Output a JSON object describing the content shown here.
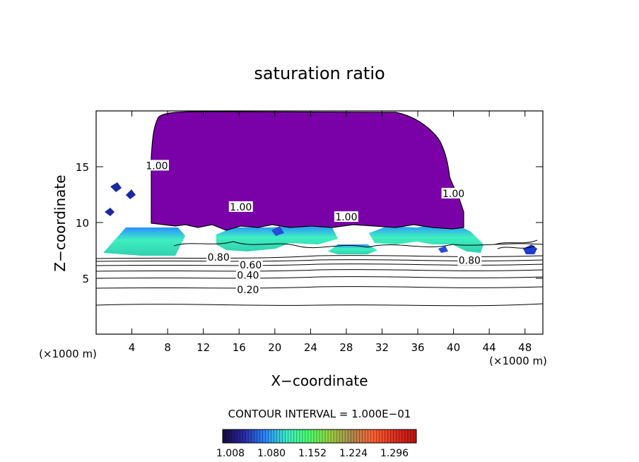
{
  "chart_data": {
    "type": "heatmap",
    "title": "saturation ratio",
    "xlabel": "X−coordinate",
    "ylabel": "Z−coordinate",
    "x_units_left": "(×1000 m)",
    "x_units_right": "(×1000 m)",
    "xlim": [
      0,
      50
    ],
    "ylim": [
      0,
      20
    ],
    "x_ticks": [
      4,
      8,
      12,
      16,
      20,
      24,
      28,
      32,
      36,
      40,
      44,
      48
    ],
    "y_ticks": [
      5,
      10,
      15
    ],
    "contour_interval_text": "CONTOUR INTERVAL = 1.000E−01",
    "colorbar_ticks": [
      "1.008",
      "1.080",
      "1.152",
      "1.224",
      "1.296"
    ],
    "colorbar_stops": [
      "#1a0a40",
      "#2a2aa8",
      "#2a8aff",
      "#3ef0c8",
      "#4cff6a",
      "#9ad040",
      "#b08a50",
      "#ff6030",
      "#e03020",
      "#c01010"
    ],
    "contour_labels": [
      {
        "text": "0.20",
        "x": 17.0,
        "y": 4.0
      },
      {
        "text": "0.40",
        "x": 17.0,
        "y": 5.3
      },
      {
        "text": "0.60",
        "x": 17.3,
        "y": 6.2
      },
      {
        "text": "0.80",
        "x": 13.7,
        "y": 6.9
      },
      {
        "text": "0.80",
        "x": 41.8,
        "y": 6.6
      },
      {
        "text": "1.00",
        "x": 16.2,
        "y": 11.4
      },
      {
        "text": "1.00",
        "x": 28.0,
        "y": 10.5
      },
      {
        "text": "1.00",
        "x": 40.0,
        "y": 12.6
      },
      {
        "text": "1.00",
        "x": 6.8,
        "y": 15.1
      }
    ],
    "purple_color": "#7a00a8"
  }
}
